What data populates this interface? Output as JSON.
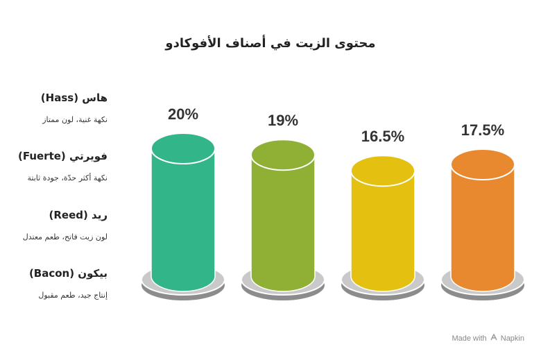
{
  "title": "محتوى الزيت في أصناف الأفوكادو",
  "legend": [
    {
      "name": "هاس (Hass)",
      "desc": "نكهة غنية، لون ممتاز"
    },
    {
      "name": "فويرتي (Fuerte)",
      "desc": "نكهة أكثر حدّة، جودة ثابتة"
    },
    {
      "name": "ريد (Reed)",
      "desc": "لون زيت فاتح، طعم معتدل"
    },
    {
      "name": "بيكون (Bacon)",
      "desc": "إنتاج جيد، طعم مقبول"
    }
  ],
  "chart_data": {
    "type": "bar",
    "title": "محتوى الزيت في أصناف الأفوكادو",
    "categories": [
      "هاس (Hass)",
      "فويرتي (Fuerte)",
      "ريد (Reed)",
      "بيكون (Bacon)"
    ],
    "values": [
      20,
      19,
      16.5,
      17.5
    ],
    "labels": [
      "20%",
      "19%",
      "16.5%",
      "17.5%"
    ],
    "colors": [
      "#32b589",
      "#8fb034",
      "#e4c111",
      "#e88930"
    ],
    "unit": "%"
  },
  "watermark": {
    "prefix": "Made with",
    "brand": "Napkin",
    "icon": "napkin-logo-icon"
  }
}
